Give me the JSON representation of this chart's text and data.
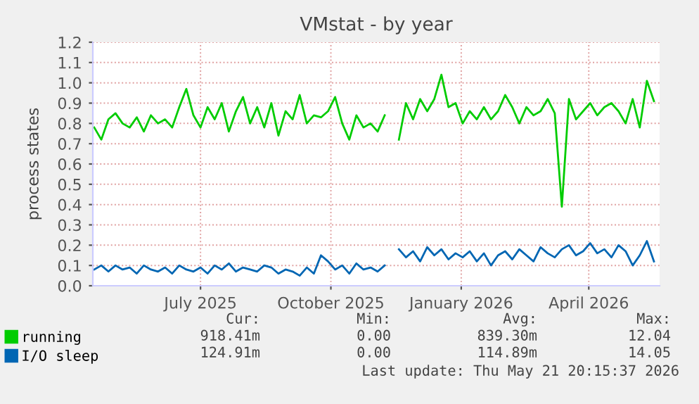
{
  "chart_data": {
    "type": "line",
    "title": "VMstat - by year",
    "ylabel": "process states",
    "x": [
      "2025-04-17",
      "2025-04-22",
      "2025-04-27",
      "2025-05-02",
      "2025-05-07",
      "2025-05-12",
      "2025-05-17",
      "2025-05-22",
      "2025-05-27",
      "2025-06-01",
      "2025-06-06",
      "2025-06-11",
      "2025-06-16",
      "2025-06-21",
      "2025-06-26",
      "2025-07-01",
      "2025-07-06",
      "2025-07-11",
      "2025-07-16",
      "2025-07-21",
      "2025-07-26",
      "2025-07-31",
      "2025-08-05",
      "2025-08-10",
      "2025-08-15",
      "2025-08-20",
      "2025-08-25",
      "2025-08-30",
      "2025-09-04",
      "2025-09-09",
      "2025-09-14",
      "2025-09-19",
      "2025-09-24",
      "2025-09-29",
      "2025-10-04",
      "2025-10-09",
      "2025-10-14",
      "2025-10-19",
      "2025-10-24",
      "2025-10-29",
      "2025-11-03",
      "2025-11-08",
      "2025-11-13",
      "2025-11-18",
      "2025-11-23",
      "2025-11-28",
      "2025-12-03",
      "2025-12-08",
      "2025-12-13",
      "2025-12-18",
      "2025-12-23",
      "2025-12-28",
      "2026-01-02",
      "2026-01-07",
      "2026-01-12",
      "2026-01-17",
      "2026-01-22",
      "2026-01-27",
      "2026-02-01",
      "2026-02-06",
      "2026-02-11",
      "2026-02-16",
      "2026-02-21",
      "2026-02-26",
      "2026-03-03",
      "2026-03-08",
      "2026-03-13",
      "2026-03-18",
      "2026-03-23",
      "2026-03-28",
      "2026-04-02",
      "2026-04-07",
      "2026-04-12",
      "2026-04-17",
      "2026-04-22",
      "2026-04-27",
      "2026-05-02",
      "2026-05-07",
      "2026-05-12",
      "2026-05-17"
    ],
    "series": [
      {
        "name": "running",
        "color": "#00cc00",
        "values": [
          0.78,
          0.72,
          0.82,
          0.85,
          0.8,
          0.78,
          0.83,
          0.76,
          0.84,
          0.8,
          0.82,
          0.78,
          0.88,
          0.97,
          0.84,
          0.78,
          0.88,
          0.82,
          0.9,
          0.76,
          0.86,
          0.93,
          0.8,
          0.88,
          0.78,
          0.9,
          0.74,
          0.86,
          0.82,
          0.94,
          0.8,
          0.84,
          0.83,
          0.86,
          0.93,
          0.8,
          0.72,
          0.84,
          0.78,
          0.8,
          0.76,
          0.84,
          null,
          0.72,
          0.9,
          0.82,
          0.92,
          0.86,
          0.92,
          1.04,
          0.88,
          0.9,
          0.8,
          0.86,
          0.82,
          0.88,
          0.82,
          0.86,
          0.94,
          0.88,
          0.8,
          0.88,
          0.84,
          0.86,
          0.92,
          0.85,
          0.39,
          0.92,
          0.82,
          0.86,
          0.9,
          0.84,
          0.88,
          0.9,
          0.86,
          0.8,
          0.92,
          0.78,
          1.01,
          0.91
        ]
      },
      {
        "name": "I/O sleep",
        "color": "#0066b3",
        "values": [
          0.08,
          0.1,
          0.07,
          0.1,
          0.08,
          0.09,
          0.06,
          0.1,
          0.08,
          0.07,
          0.09,
          0.06,
          0.1,
          0.08,
          0.07,
          0.09,
          0.06,
          0.1,
          0.08,
          0.11,
          0.07,
          0.09,
          0.08,
          0.07,
          0.1,
          0.09,
          0.06,
          0.08,
          0.07,
          0.05,
          0.09,
          0.06,
          0.15,
          0.12,
          0.08,
          0.1,
          0.06,
          0.11,
          0.08,
          0.09,
          0.07,
          0.1,
          null,
          0.18,
          0.14,
          0.17,
          0.12,
          0.19,
          0.15,
          0.18,
          0.13,
          0.16,
          0.14,
          0.17,
          0.12,
          0.16,
          0.1,
          0.15,
          0.17,
          0.13,
          0.18,
          0.15,
          0.12,
          0.19,
          0.16,
          0.14,
          0.18,
          0.2,
          0.15,
          0.17,
          0.21,
          0.16,
          0.18,
          0.14,
          0.2,
          0.17,
          0.1,
          0.15,
          0.22,
          0.12
        ]
      }
    ],
    "xlim": [
      "2025-04-16",
      "2026-05-21"
    ],
    "xticks": [
      {
        "value": "2025-07-01",
        "label": "July 2025"
      },
      {
        "value": "2025-10-01",
        "label": "October 2025"
      },
      {
        "value": "2026-01-01",
        "label": "January 2026"
      },
      {
        "value": "2026-04-01",
        "label": "April 2026"
      }
    ],
    "ylim": [
      0,
      1.2
    ],
    "yticks": [
      {
        "value": 0,
        "label": "0.0"
      },
      0.1,
      0.2,
      0.3,
      0.4,
      0.5,
      0.6,
      0.7,
      0.8,
      0.9,
      {
        "value": 1,
        "label": "1.0"
      },
      1.1,
      1.2
    ],
    "grid": true,
    "legend": "bottom",
    "marker": "none",
    "line_style": "solid",
    "annotations": [
      "Cur:",
      "Min:",
      "Avg:",
      "Max:",
      "918.41m",
      "0.00",
      "839.30m",
      "12.04",
      "124.91m",
      "0.00",
      "114.89m",
      "14.05",
      "Last update: Thu May 21 20:15:37 2026"
    ]
  }
}
